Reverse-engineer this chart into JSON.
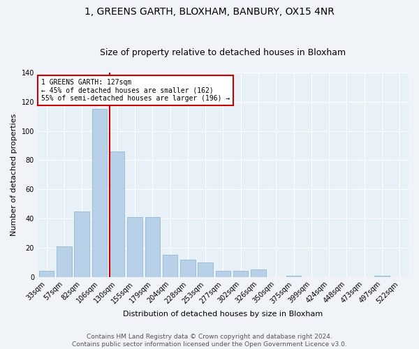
{
  "title": "1, GREENS GARTH, BLOXHAM, BANBURY, OX15 4NR",
  "subtitle": "Size of property relative to detached houses in Bloxham",
  "xlabel": "Distribution of detached houses by size in Bloxham",
  "ylabel": "Number of detached properties",
  "bar_color": "#b8d0e8",
  "bar_edge_color": "#8ab0cc",
  "background_color": "#e8f0f8",
  "grid_color": "#ffffff",
  "fig_background": "#f0f4f8",
  "categories": [
    "33sqm",
    "57sqm",
    "82sqm",
    "106sqm",
    "130sqm",
    "155sqm",
    "179sqm",
    "204sqm",
    "228sqm",
    "253sqm",
    "277sqm",
    "302sqm",
    "326sqm",
    "350sqm",
    "375sqm",
    "399sqm",
    "424sqm",
    "448sqm",
    "473sqm",
    "497sqm",
    "522sqm"
  ],
  "values": [
    4,
    21,
    45,
    115,
    86,
    41,
    41,
    15,
    12,
    10,
    4,
    4,
    5,
    0,
    1,
    0,
    0,
    0,
    0,
    1,
    0
  ],
  "annotation_line1": "1 GREENS GARTH: 127sqm",
  "annotation_line2": "← 45% of detached houses are smaller (162)",
  "annotation_line3": "55% of semi-detached houses are larger (196) →",
  "vline_color": "#cc0000",
  "annotation_box_edge": "#cc0000",
  "vline_pos": 3.58,
  "ylim": [
    0,
    140
  ],
  "yticks": [
    0,
    20,
    40,
    60,
    80,
    100,
    120,
    140
  ],
  "footer_line1": "Contains HM Land Registry data © Crown copyright and database right 2024.",
  "footer_line2": "Contains public sector information licensed under the Open Government Licence v3.0.",
  "title_fontsize": 10,
  "subtitle_fontsize": 9,
  "ylabel_fontsize": 8,
  "xlabel_fontsize": 8,
  "tick_fontsize": 7,
  "annotation_fontsize": 7,
  "footer_fontsize": 6.5
}
